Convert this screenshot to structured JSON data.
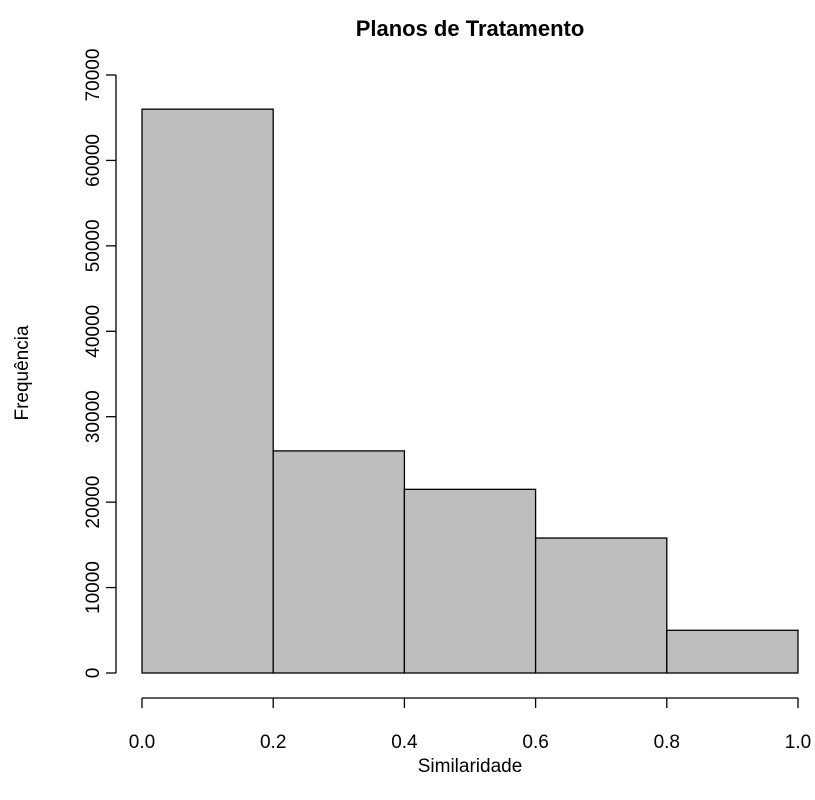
{
  "chart_data": {
    "type": "bar",
    "title": "Planos de Tratamento",
    "xlabel": "Similaridade",
    "ylabel": "Frequência",
    "bins": [
      {
        "x0": 0.0,
        "x1": 0.2,
        "count": 66000
      },
      {
        "x0": 0.2,
        "x1": 0.4,
        "count": 26000
      },
      {
        "x0": 0.4,
        "x1": 0.6,
        "count": 21500
      },
      {
        "x0": 0.6,
        "x1": 0.8,
        "count": 15800
      },
      {
        "x0": 0.8,
        "x1": 1.0,
        "count": 5000
      }
    ],
    "xlim": [
      0.0,
      1.0
    ],
    "ylim": [
      0,
      70000
    ],
    "x_ticks": [
      "0.0",
      "0.2",
      "0.4",
      "0.6",
      "0.8",
      "1.0"
    ],
    "y_ticks": [
      "0",
      "10000",
      "20000",
      "30000",
      "40000",
      "50000",
      "60000",
      "70000"
    ],
    "bar_color": "#bebebe",
    "grid": false,
    "legend": "none"
  }
}
